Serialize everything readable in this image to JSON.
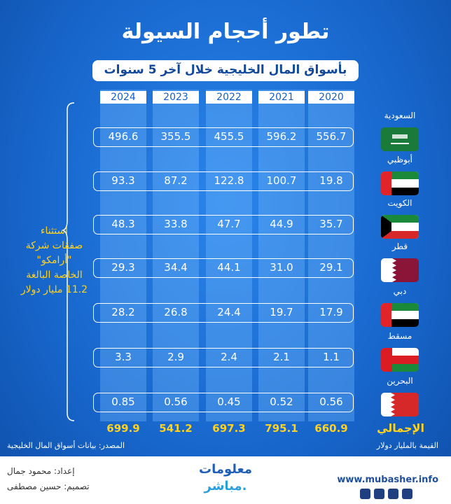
{
  "header": {
    "title": "تطور أحجام السيولة",
    "subtitle": "بأسواق المال الخليجية خلال آخر 5 سنوات"
  },
  "table": {
    "years": [
      "2024",
      "2023",
      "2022",
      "2021",
      "2020"
    ],
    "rows": [
      {
        "name": "السعودية",
        "values": [
          "496.6",
          "355.5",
          "455.5",
          "596.2",
          "556.7"
        ]
      },
      {
        "name": "أبوظبي",
        "values": [
          "93.3",
          "87.2",
          "122.8",
          "100.7",
          "19.8"
        ]
      },
      {
        "name": "الكويت",
        "values": [
          "48.3",
          "33.8",
          "47.7",
          "44.9",
          "35.7"
        ]
      },
      {
        "name": "قطر",
        "values": [
          "29.3",
          "34.4",
          "44.1",
          "31.0",
          "29.1"
        ]
      },
      {
        "name": "دبي",
        "values": [
          "28.2",
          "26.8",
          "24.4",
          "19.7",
          "17.9"
        ]
      },
      {
        "name": "مسقط",
        "values": [
          "3.3",
          "2.9",
          "2.4",
          "2.1",
          "1.1"
        ]
      },
      {
        "name": "البحرين",
        "values": [
          "0.85",
          "0.56",
          "0.45",
          "0.52",
          "0.56"
        ]
      }
    ],
    "total": {
      "label": "الإجمالي",
      "values": [
        "699.9",
        "541.2",
        "697.3",
        "795.1",
        "660.9"
      ]
    }
  },
  "note": [
    "استثناء",
    "صفقات شركة",
    "\"أرامكو\"",
    "الخاصة البالغة",
    "11.2 مليار دولار"
  ],
  "source": "المصدر: بيانات أسواق المال الخليجية",
  "unit": "القيمة بالمليار دولار",
  "footer": {
    "prepared": "إعداد: محمود جمال",
    "design": "تصميم: حسين مصطفى",
    "logo_top": "معلومات",
    "logo_bottom": "مباشر.",
    "website": "www.mubasher.info"
  }
}
